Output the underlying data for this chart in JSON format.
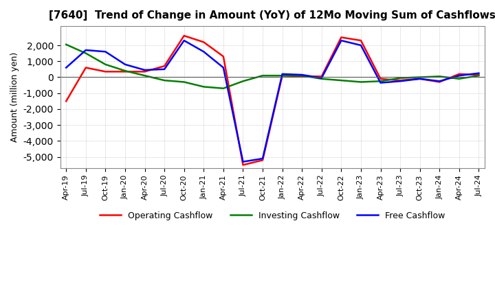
{
  "title": "[7640]  Trend of Change in Amount (YoY) of 12Mo Moving Sum of Cashflows",
  "ylabel": "Amount (million yen)",
  "background_color": "#ffffff",
  "grid_color": "#aaaaaa",
  "x_labels": [
    "Apr-19",
    "Jul-19",
    "Oct-19",
    "Jan-20",
    "Apr-20",
    "Jul-20",
    "Oct-20",
    "Jan-21",
    "Apr-21",
    "Jul-21",
    "Oct-21",
    "Jan-22",
    "Apr-22",
    "Jul-22",
    "Oct-22",
    "Jan-23",
    "Apr-23",
    "Jul-23",
    "Oct-23",
    "Jan-24",
    "Apr-24",
    "Jul-24"
  ],
  "operating_cashflow": [
    -1500,
    600,
    350,
    350,
    350,
    700,
    2600,
    2200,
    1300,
    -5500,
    -5200,
    100,
    50,
    50,
    2500,
    2300,
    -100,
    -200,
    -100,
    -300,
    200,
    150
  ],
  "investing_cashflow": [
    2050,
    1500,
    800,
    400,
    100,
    -200,
    -300,
    -600,
    -700,
    -250,
    100,
    100,
    100,
    -100,
    -200,
    -300,
    -250,
    -50,
    0,
    50,
    -100,
    100
  ],
  "free_cashflow": [
    600,
    1700,
    1600,
    800,
    450,
    500,
    2300,
    1600,
    600,
    -5300,
    -5100,
    200,
    150,
    -50,
    2300,
    2000,
    -350,
    -250,
    -100,
    -250,
    100,
    250
  ],
  "ylim": [
    -5700,
    3200
  ],
  "yticks": [
    -5000,
    -4000,
    -3000,
    -2000,
    -1000,
    0,
    1000,
    2000
  ],
  "line_colors": {
    "operating": "#ff0000",
    "investing": "#008000",
    "free": "#0000ff"
  },
  "line_width": 1.8,
  "title_fontsize": 11,
  "axis_fontsize": 9,
  "tick_fontsize": 8
}
